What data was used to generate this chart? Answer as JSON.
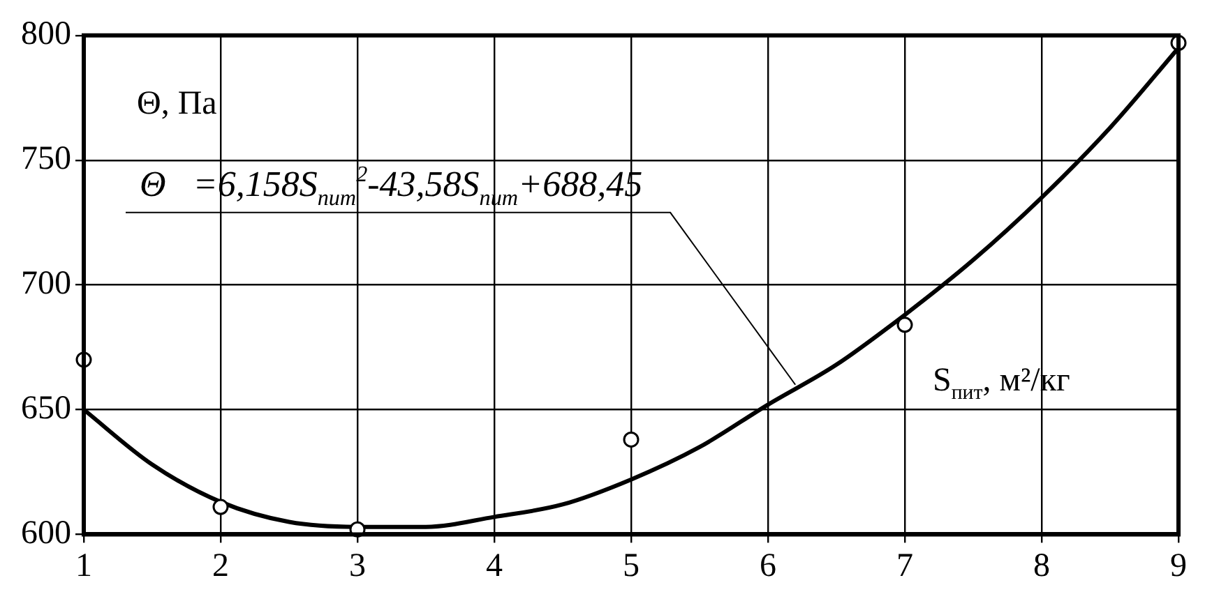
{
  "chart_data": {
    "type": "scatter",
    "xlabel": "S$_{пит}$, м²/кг",
    "ylabel": "Θ, Па",
    "xlim": [
      1,
      9
    ],
    "xticks": [
      1,
      2,
      3,
      4,
      5,
      6,
      7,
      8,
      9
    ],
    "ylim": [
      600,
      800
    ],
    "yticks": [
      600,
      650,
      700,
      750,
      800
    ],
    "grid": true,
    "legend": false,
    "series": [
      {
        "color": "#000000",
        "marker": "circle",
        "x": [
          1,
          2,
          3,
          5,
          7,
          9
        ],
        "values": [
          670,
          611,
          602,
          638,
          684,
          797
        ]
      },
      {
        "type": "line",
        "color": "#000000",
        "marker": "none",
        "x": [
          1,
          1.5,
          2,
          2.5,
          3,
          3.5,
          4,
          4.5,
          5,
          5.5,
          6,
          6.5,
          7,
          7.5,
          8,
          8.5,
          9
        ],
        "values": [
          650,
          628,
          613,
          605,
          603,
          603,
          607,
          612,
          622,
          635,
          652,
          668,
          688,
          710,
          735,
          763,
          795
        ]
      }
    ],
    "annotations": [
      {
        "text": "Θ   =6,158S$_{пит}$$^{2}$-43,58S$_{пит}$+688,45",
        "x": 6.2,
        "y": 660
      }
    ]
  }
}
